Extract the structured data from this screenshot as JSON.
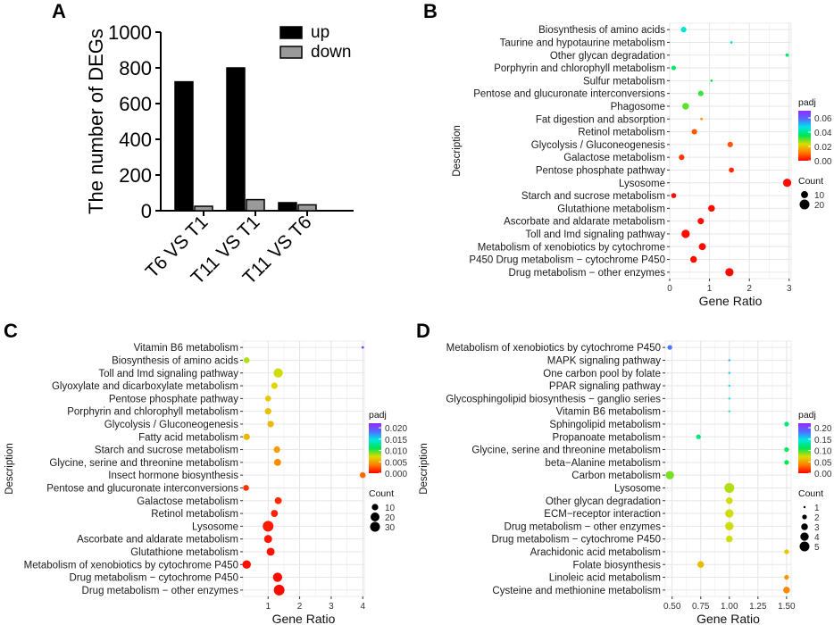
{
  "chart_data": [
    {
      "panel": "A",
      "type": "bar",
      "ylabel": "The number of DEGs",
      "ylim": [
        0,
        1000
      ],
      "yticks": [
        0,
        200,
        400,
        600,
        800,
        1000
      ],
      "categories": [
        "T6 VS T1",
        "T11 VS T1",
        "T11 VS T6"
      ],
      "series": [
        {
          "name": "up",
          "color": "#000000",
          "values": [
            722,
            800,
            45
          ]
        },
        {
          "name": "down",
          "color": "#9a9a9a",
          "values": [
            25,
            62,
            33
          ]
        }
      ]
    },
    {
      "panel": "B",
      "type": "scatter",
      "xlabel": "Gene Ratio",
      "ylabel": "Description",
      "xlim": [
        0,
        3.05
      ],
      "xticks": [
        0,
        1,
        2,
        3
      ],
      "color_label": "padj",
      "color_range": [
        0,
        0.07
      ],
      "color_ticks": [
        "0.00",
        "0.02",
        "0.04",
        "0.06"
      ],
      "size_label": "Count",
      "size_ticks": [
        10,
        20
      ],
      "size_range": [
        1,
        20
      ],
      "points": [
        {
          "term": "Biosynthesis of amino acids",
          "x": 0.35,
          "count": 6,
          "padj": 0.045
        },
        {
          "term": "Taurine and hypotaurine metabolism",
          "x": 1.55,
          "count": 1,
          "padj": 0.045
        },
        {
          "term": "Other glycan degradation",
          "x": 2.95,
          "count": 2,
          "padj": 0.038
        },
        {
          "term": "Porphyrin and chlorophyll metabolism",
          "x": 0.1,
          "count": 4,
          "padj": 0.037
        },
        {
          "term": "Sulfur metabolism",
          "x": 1.05,
          "count": 1,
          "padj": 0.035
        },
        {
          "term": "Pentose and glucuronate interconversions",
          "x": 0.78,
          "count": 6,
          "padj": 0.032
        },
        {
          "term": "Phagosome",
          "x": 0.4,
          "count": 9,
          "padj": 0.03
        },
        {
          "term": "Fat digestion and absorption",
          "x": 0.8,
          "count": 1,
          "padj": 0.014
        },
        {
          "term": "Retinol metabolism",
          "x": 0.62,
          "count": 6,
          "padj": 0.008
        },
        {
          "term": "Glycolysis / Gluconeogenesis",
          "x": 1.52,
          "count": 6,
          "padj": 0.008
        },
        {
          "term": "Galactose metabolism",
          "x": 0.3,
          "count": 6,
          "padj": 0.005
        },
        {
          "term": "Pentose phosphate pathway",
          "x": 1.55,
          "count": 5,
          "padj": 0.004
        },
        {
          "term": "Lysosome",
          "x": 2.95,
          "count": 14,
          "padj": 0.001
        },
        {
          "term": "Starch and sucrose metabolism",
          "x": 0.1,
          "count": 5,
          "padj": 0.001
        },
        {
          "term": "Glutathione metabolism",
          "x": 1.05,
          "count": 9,
          "padj": 0.001
        },
        {
          "term": "Ascorbate and aldarate metabolism",
          "x": 0.78,
          "count": 8,
          "padj": 0.001
        },
        {
          "term": "Toll and Imd signaling pathway",
          "x": 0.4,
          "count": 14,
          "padj": 0.001
        },
        {
          "term": "Metabolism of xenobiotics by cytochrome",
          "x": 0.82,
          "count": 10,
          "padj": 0.001
        },
        {
          "term": "P450 Drug metabolism − cytochrome P450",
          "x": 0.6,
          "count": 9,
          "padj": 0.001
        },
        {
          "term": "Drug metabolism − other enzymes",
          "x": 1.5,
          "count": 14,
          "padj": 0.0005
        }
      ]
    },
    {
      "panel": "C",
      "type": "scatter",
      "xlabel": "Gene Ratio",
      "ylabel": "Description",
      "xlim": [
        0.2,
        4.05
      ],
      "xticks": [
        1,
        2,
        3,
        4
      ],
      "color_label": "padj",
      "color_range": [
        0,
        0.022
      ],
      "color_ticks": [
        "0.000",
        "0.005",
        "0.010",
        "0.015",
        "0.020"
      ],
      "size_label": "Count",
      "size_ticks": [
        10,
        20,
        30
      ],
      "size_range": [
        1,
        30
      ],
      "points": [
        {
          "term": "Vitamin B6 metabolism",
          "x": 4.0,
          "count": 1,
          "padj": 0.021
        },
        {
          "term": "Biosynthesis of amino acids",
          "x": 0.32,
          "count": 8,
          "padj": 0.008
        },
        {
          "term": "Toll and Imd signaling pathway",
          "x": 1.32,
          "count": 22,
          "padj": 0.0075
        },
        {
          "term": "Glyoxylate and dicarboxylate metabolism",
          "x": 1.2,
          "count": 10,
          "padj": 0.007
        },
        {
          "term": "Pentose phosphate pathway",
          "x": 1.0,
          "count": 8,
          "padj": 0.0065
        },
        {
          "term": "Porphyrin and chlorophyll metabolism",
          "x": 1.0,
          "count": 10,
          "padj": 0.0062
        },
        {
          "term": "Glycolysis / Gluconeogenesis",
          "x": 1.08,
          "count": 10,
          "padj": 0.006
        },
        {
          "term": "Fatty acid metabolism",
          "x": 0.32,
          "count": 10,
          "padj": 0.0058
        },
        {
          "term": "Starch and sucrose metabolism",
          "x": 1.28,
          "count": 10,
          "padj": 0.0048
        },
        {
          "term": "Glycine, serine and threonine metabolism",
          "x": 1.3,
          "count": 12,
          "padj": 0.0042
        },
        {
          "term": "Insect hormone biosynthesis",
          "x": 4.0,
          "count": 8,
          "padj": 0.003
        },
        {
          "term": "Pentose and glucuronate interconversions",
          "x": 0.3,
          "count": 8,
          "padj": 0.0015
        },
        {
          "term": "Galactose metabolism",
          "x": 1.32,
          "count": 12,
          "padj": 0.0012
        },
        {
          "term": "Retinol metabolism",
          "x": 1.2,
          "count": 12,
          "padj": 0.001
        },
        {
          "term": "Lysosome",
          "x": 1.0,
          "count": 30,
          "padj": 0.0008
        },
        {
          "term": "Ascorbate and aldarate metabolism",
          "x": 1.0,
          "count": 16,
          "padj": 0.0006
        },
        {
          "term": "Glutathione metabolism",
          "x": 1.08,
          "count": 16,
          "padj": 0.0005
        },
        {
          "term": "Metabolism of xenobiotics by cytochrome P450",
          "x": 0.32,
          "count": 18,
          "padj": 0.0004
        },
        {
          "term": "Drug metabolism − cytochrome P450",
          "x": 1.3,
          "count": 22,
          "padj": 0.0003
        },
        {
          "term": "Drug metabolism − other enzymes",
          "x": 1.35,
          "count": 30,
          "padj": 0.0002
        }
      ]
    },
    {
      "panel": "D",
      "type": "scatter",
      "xlabel": "Gene Ratio",
      "ylabel": "Description",
      "xlim": [
        0.44,
        1.54
      ],
      "xticks": [
        0.5,
        0.75,
        1.0,
        1.25,
        1.5
      ],
      "xtick_labels": [
        "0.50",
        "0.75",
        "1.00",
        "1.25",
        "1.50"
      ],
      "color_label": "padj",
      "color_range": [
        0,
        0.22
      ],
      "color_ticks": [
        "0.00",
        "0.05",
        "0.10",
        "0.15",
        "0.20"
      ],
      "size_label": "Count",
      "size_ticks": [
        1,
        2,
        3,
        4,
        5
      ],
      "size_range": [
        1,
        5
      ],
      "points": [
        {
          "term": "Metabolism of xenobiotics by cytochrome P450",
          "x": 0.48,
          "count": 2,
          "padj": 0.18
        },
        {
          "term": "MAPK signaling pathway",
          "x": 1.0,
          "count": 1,
          "padj": 0.16
        },
        {
          "term": "One carbon pool by folate",
          "x": 1.0,
          "count": 1,
          "padj": 0.155
        },
        {
          "term": "PPAR signaling pathway",
          "x": 1.0,
          "count": 1,
          "padj": 0.15
        },
        {
          "term": "Glycosphingolipid biosynthesis − ganglio series",
          "x": 1.0,
          "count": 1,
          "padj": 0.145
        },
        {
          "term": "Vitamin B6 metabolism",
          "x": 1.0,
          "count": 1,
          "padj": 0.14
        },
        {
          "term": "Sphingolipid metabolism",
          "x": 1.5,
          "count": 2,
          "padj": 0.12
        },
        {
          "term": "Propanoate metabolism",
          "x": 0.73,
          "count": 2,
          "padj": 0.12
        },
        {
          "term": "Glycine, serine and threonine metabolism",
          "x": 1.5,
          "count": 2,
          "padj": 0.115
        },
        {
          "term": "beta−Alanine metabolism",
          "x": 1.5,
          "count": 2,
          "padj": 0.11
        },
        {
          "term": "Carbon metabolism",
          "x": 0.48,
          "count": 4,
          "padj": 0.09
        },
        {
          "term": "Lysosome",
          "x": 1.0,
          "count": 5,
          "padj": 0.08
        },
        {
          "term": "Other glycan degradation",
          "x": 1.0,
          "count": 3,
          "padj": 0.075
        },
        {
          "term": "ECM−receptor interaction",
          "x": 1.0,
          "count": 4,
          "padj": 0.075
        },
        {
          "term": "Drug metabolism − other enzymes",
          "x": 1.0,
          "count": 4,
          "padj": 0.075
        },
        {
          "term": "Drug metabolism − cytochrome P450",
          "x": 1.0,
          "count": 3,
          "padj": 0.075
        },
        {
          "term": "Arachidonic acid metabolism",
          "x": 1.5,
          "count": 2,
          "padj": 0.065
        },
        {
          "term": "Folate biosynthesis",
          "x": 0.75,
          "count": 3,
          "padj": 0.06
        },
        {
          "term": "Linoleic acid metabolism",
          "x": 1.5,
          "count": 2,
          "padj": 0.045
        },
        {
          "term": "Cysteine and methionine metabolism",
          "x": 1.5,
          "count": 3,
          "padj": 0.04
        }
      ]
    }
  ]
}
